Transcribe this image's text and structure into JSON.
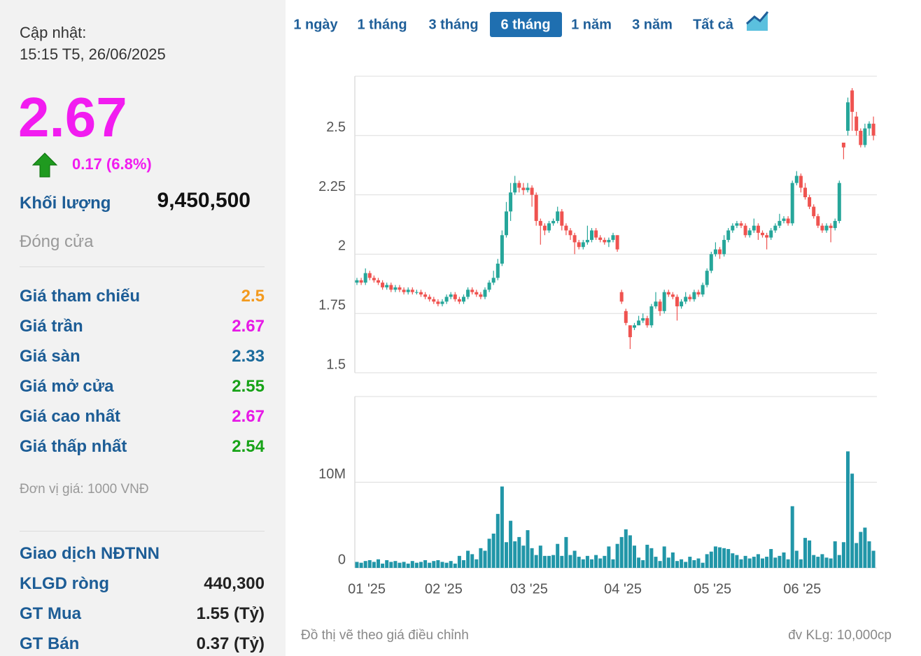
{
  "header": {
    "label": "Cập nhật:",
    "time": "15:15 T5, 26/06/2025"
  },
  "quote": {
    "price": "2.67",
    "change": "0.17 (6.8%)",
    "volume_label": "Khối lượng",
    "volume": "9,450,500",
    "status": "Đóng cửa"
  },
  "stats": [
    {
      "label": "Giá tham chiếu",
      "value": "2.5",
      "color": "#f39a1e"
    },
    {
      "label": "Giá trần",
      "value": "2.67",
      "color": "#e619e6"
    },
    {
      "label": "Giá sàn",
      "value": "2.33",
      "color": "#1b6b9c"
    },
    {
      "label": "Giá mở cửa",
      "value": "2.55",
      "color": "#17a317"
    },
    {
      "label": "Giá cao nhất",
      "value": "2.67",
      "color": "#e619e6"
    },
    {
      "label": "Giá thấp nhất",
      "value": "2.54",
      "color": "#17a317"
    }
  ],
  "unit_note": "Đơn vị giá: 1000 VNĐ",
  "foreign": {
    "title": "Giao dịch NĐTNN",
    "rows": [
      {
        "label": "KLGD ròng",
        "value": "440,300"
      },
      {
        "label": "GT Mua",
        "value": "1.55 (Tỷ)"
      },
      {
        "label": "GT Bán",
        "value": "0.37 (Tỷ)"
      }
    ]
  },
  "tabs": [
    "1 ngày",
    "1 tháng",
    "3 tháng",
    "6 tháng",
    "1 năm",
    "3 năm",
    "Tất cả"
  ],
  "active_tab": 3,
  "footer": {
    "note": "Đồ thị vẽ theo giá điều chỉnh",
    "unit": "đv KLg: 10,000cp"
  },
  "chart_data": [
    {
      "type": "candlestick",
      "up_color": "#26a69a",
      "down_color": "#ef5350",
      "ylim": [
        1.5,
        2.75
      ],
      "yticks": [
        1.5,
        1.75,
        2,
        2.25,
        2.5
      ],
      "grid": true,
      "open": [
        1.88,
        1.89,
        1.88,
        1.92,
        1.9,
        1.89,
        1.88,
        1.86,
        1.87,
        1.85,
        1.86,
        1.85,
        1.84,
        1.85,
        1.84,
        1.84,
        1.83,
        1.82,
        1.81,
        1.8,
        1.79,
        1.8,
        1.82,
        1.83,
        1.81,
        1.8,
        1.82,
        1.85,
        1.84,
        1.83,
        1.82,
        1.85,
        1.88,
        1.9,
        1.96,
        2.08,
        2.18,
        2.26,
        2.3,
        2.28,
        2.27,
        2.28,
        2.25,
        2.14,
        2.12,
        2.1,
        2.13,
        2.14,
        2.18,
        2.12,
        2.1,
        2.08,
        2.05,
        2.03,
        2.05,
        2.06,
        2.1,
        2.07,
        2.06,
        2.05,
        2.06,
        2.08,
        1.84,
        1.76,
        1.7,
        1.69,
        1.7,
        1.72,
        1.73,
        1.7,
        1.78,
        1.8,
        1.76,
        1.84,
        1.83,
        1.82,
        1.78,
        1.8,
        1.82,
        1.81,
        1.84,
        1.83,
        1.87,
        1.93,
        2.0,
        2.02,
        2.0,
        2.06,
        2.1,
        2.12,
        2.13,
        2.12,
        2.08,
        2.1,
        2.12,
        2.09,
        2.08,
        2.07,
        2.1,
        2.12,
        2.14,
        2.15,
        2.13,
        2.3,
        2.33,
        2.28,
        2.24,
        2.2,
        2.16,
        2.12,
        2.1,
        2.12,
        2.11,
        2.14,
        2.47,
        2.52,
        2.69,
        2.58,
        2.52,
        2.46,
        2.53,
        2.55
      ],
      "high": [
        1.9,
        1.9,
        1.94,
        1.93,
        1.91,
        1.9,
        1.89,
        1.88,
        1.88,
        1.87,
        1.87,
        1.86,
        1.86,
        1.86,
        1.85,
        1.85,
        1.84,
        1.83,
        1.82,
        1.81,
        1.81,
        1.83,
        1.84,
        1.84,
        1.82,
        1.83,
        1.86,
        1.86,
        1.85,
        1.84,
        1.86,
        1.89,
        1.93,
        1.98,
        2.1,
        2.22,
        2.3,
        2.33,
        2.31,
        2.3,
        2.3,
        2.29,
        2.26,
        2.15,
        2.13,
        2.14,
        2.15,
        2.2,
        2.19,
        2.13,
        2.11,
        2.09,
        2.06,
        2.06,
        2.12,
        2.11,
        2.11,
        2.08,
        2.07,
        2.07,
        2.09,
        2.08,
        1.85,
        1.77,
        1.7,
        1.71,
        1.74,
        1.75,
        1.74,
        1.79,
        1.84,
        1.81,
        1.85,
        1.85,
        1.84,
        1.83,
        1.81,
        1.84,
        1.83,
        1.85,
        1.85,
        1.88,
        1.94,
        2.01,
        2.05,
        2.03,
        2.08,
        2.11,
        2.13,
        2.14,
        2.14,
        2.13,
        2.11,
        2.15,
        2.13,
        2.1,
        2.09,
        2.11,
        2.13,
        2.17,
        2.16,
        2.16,
        2.31,
        2.35,
        2.34,
        2.3,
        2.25,
        2.21,
        2.17,
        2.13,
        2.13,
        2.13,
        2.15,
        2.31,
        2.47,
        2.66,
        2.7,
        2.6,
        2.53,
        2.55,
        2.56,
        2.58
      ],
      "low": [
        1.87,
        1.87,
        1.87,
        1.89,
        1.88,
        1.87,
        1.85,
        1.85,
        1.84,
        1.84,
        1.84,
        1.83,
        1.83,
        1.83,
        1.83,
        1.82,
        1.81,
        1.8,
        1.79,
        1.78,
        1.78,
        1.79,
        1.81,
        1.8,
        1.79,
        1.79,
        1.81,
        1.83,
        1.82,
        1.81,
        1.81,
        1.84,
        1.87,
        1.89,
        1.95,
        2.07,
        2.14,
        2.25,
        2.26,
        2.25,
        2.26,
        2.2,
        2.12,
        2.04,
        2.08,
        2.09,
        2.12,
        2.13,
        2.1,
        2.08,
        2.06,
        2.0,
        2.02,
        2.02,
        2.04,
        2.05,
        2.06,
        2.05,
        2.04,
        2.03,
        2.05,
        2.01,
        1.79,
        1.7,
        1.6,
        1.68,
        1.7,
        1.71,
        1.69,
        1.69,
        1.77,
        1.74,
        1.75,
        1.82,
        1.81,
        1.72,
        1.77,
        1.79,
        1.8,
        1.8,
        1.82,
        1.82,
        1.86,
        1.92,
        1.99,
        1.98,
        1.99,
        2.05,
        2.09,
        2.11,
        2.11,
        2.07,
        2.07,
        2.09,
        2.06,
        2.07,
        2.02,
        2.06,
        2.09,
        2.11,
        2.13,
        2.12,
        2.12,
        2.29,
        2.26,
        2.23,
        2.19,
        2.15,
        2.11,
        2.09,
        2.09,
        2.05,
        2.1,
        2.13,
        2.4,
        2.5,
        2.52,
        2.5,
        2.45,
        2.45,
        2.5,
        2.48
      ],
      "close": [
        1.89,
        1.88,
        1.92,
        1.9,
        1.89,
        1.88,
        1.86,
        1.87,
        1.85,
        1.86,
        1.85,
        1.84,
        1.85,
        1.84,
        1.84,
        1.83,
        1.82,
        1.81,
        1.8,
        1.79,
        1.8,
        1.82,
        1.83,
        1.81,
        1.8,
        1.82,
        1.85,
        1.84,
        1.83,
        1.82,
        1.85,
        1.88,
        1.9,
        1.96,
        2.08,
        2.18,
        2.26,
        2.3,
        2.28,
        2.27,
        2.28,
        2.25,
        2.14,
        2.12,
        2.1,
        2.13,
        2.14,
        2.18,
        2.12,
        2.1,
        2.08,
        2.05,
        2.03,
        2.05,
        2.06,
        2.1,
        2.07,
        2.06,
        2.05,
        2.06,
        2.08,
        2.02,
        1.8,
        1.71,
        1.65,
        1.7,
        1.72,
        1.73,
        1.7,
        1.78,
        1.8,
        1.76,
        1.84,
        1.83,
        1.82,
        1.78,
        1.8,
        1.82,
        1.81,
        1.84,
        1.83,
        1.87,
        1.93,
        2.0,
        2.02,
        2.0,
        2.06,
        2.1,
        2.12,
        2.13,
        2.12,
        2.08,
        2.1,
        2.12,
        2.09,
        2.08,
        2.07,
        2.1,
        2.12,
        2.14,
        2.15,
        2.13,
        2.3,
        2.33,
        2.28,
        2.24,
        2.2,
        2.16,
        2.12,
        2.1,
        2.12,
        2.11,
        2.14,
        2.3,
        2.45,
        2.64,
        2.6,
        2.52,
        2.46,
        2.53,
        2.55,
        2.5
      ]
    },
    {
      "type": "bar",
      "color": "#2196a8",
      "ylim": [
        0,
        20000000
      ],
      "yticks": [
        0,
        {
          "value": 10000000,
          "label": "10M"
        }
      ],
      "grid": true,
      "categories": [
        null,
        "01 '25",
        null,
        null,
        null,
        null,
        null,
        null,
        null,
        null,
        null,
        null,
        null,
        null,
        null,
        null,
        null,
        null,
        null,
        "02 '25",
        null,
        null,
        null,
        null,
        null,
        null,
        null,
        null,
        null,
        null,
        null,
        null,
        null,
        null,
        null,
        null,
        null,
        null,
        null,
        "03 '25",
        null,
        null,
        null,
        null,
        null,
        null,
        null,
        null,
        null,
        null,
        null,
        null,
        null,
        null,
        null,
        null,
        null,
        null,
        null,
        null,
        null,
        "04 '25",
        null,
        null,
        null,
        null,
        null,
        null,
        null,
        null,
        null,
        null,
        null,
        null,
        null,
        null,
        null,
        null,
        null,
        null,
        null,
        null,
        "05 '25",
        null,
        null,
        null,
        null,
        null,
        null,
        null,
        null,
        null,
        null,
        null,
        null,
        null,
        null,
        null,
        null,
        null,
        null,
        null,
        null,
        "06 '25",
        null,
        null,
        null,
        null,
        null,
        null,
        null,
        null,
        null,
        null,
        null,
        null,
        null,
        null,
        null,
        null,
        null,
        null
      ],
      "values": [
        700000,
        600000,
        800000,
        900000,
        700000,
        1000000,
        500000,
        900000,
        700000,
        800000,
        600000,
        700000,
        500000,
        800000,
        600000,
        700000,
        900000,
        600000,
        800000,
        900000,
        700000,
        600000,
        800000,
        500000,
        1400000,
        900000,
        2000000,
        1600000,
        1000000,
        2300000,
        2000000,
        3400000,
        4000000,
        6300000,
        9500000,
        3000000,
        5500000,
        3100000,
        3600000,
        2600000,
        4400000,
        2300000,
        1500000,
        2600000,
        1400000,
        1400000,
        1500000,
        2800000,
        1400000,
        3600000,
        1500000,
        2000000,
        1300000,
        1000000,
        1400000,
        1000000,
        1500000,
        1100000,
        1400000,
        2500000,
        1000000,
        2800000,
        3600000,
        4500000,
        3800000,
        2600000,
        1200000,
        900000,
        2700000,
        2300000,
        1300000,
        800000,
        2500000,
        1200000,
        1800000,
        800000,
        1000000,
        700000,
        1300000,
        900000,
        1100000,
        600000,
        1600000,
        1900000,
        2500000,
        2400000,
        2300000,
        2200000,
        1700000,
        1500000,
        1000000,
        1400000,
        1100000,
        1300000,
        1600000,
        1100000,
        1300000,
        2200000,
        1200000,
        1400000,
        1800000,
        1000000,
        7200000,
        2000000,
        1000000,
        3500000,
        3200000,
        1500000,
        1300000,
        1600000,
        1200000,
        1100000,
        3100000,
        1500000,
        3000000,
        13600000,
        11000000,
        2900000,
        4200000,
        4700000,
        3100000,
        2000000
      ]
    }
  ]
}
